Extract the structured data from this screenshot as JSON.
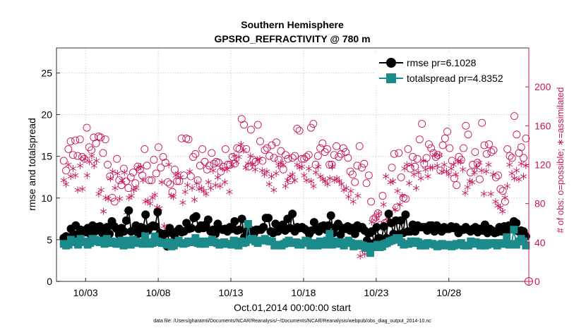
{
  "chart_data": {
    "type": "line",
    "title": "Southern Hemisphere",
    "subtitle": "GPSRO_REFRACTIVITY @ 780 m",
    "xlabel": "Oct.01,2014 00:00:00 start",
    "ylabel": "rmse and totalspread",
    "ylabel_right": "# of obs: o=possible; ∗=assimilated",
    "footer": "data file: /Users/gharamti/Documents/NCAR/Reanalysis/~/Documents/NCAR/Reanalysis/webpub/obs_diag_output_2014-10.nc",
    "xlim": [
      1,
      33.5
    ],
    "ylim": [
      0,
      28
    ],
    "ylim_right": [
      0,
      240
    ],
    "x_ticks": [
      3,
      8,
      13,
      18,
      23,
      28
    ],
    "x_tick_labels": [
      "10/03",
      "10/08",
      "10/13",
      "10/18",
      "10/23",
      "10/28"
    ],
    "y_ticks": [
      0,
      5,
      10,
      15,
      20,
      25
    ],
    "y_tick_labels": [
      "0",
      "5",
      "10",
      "15",
      "20",
      "25"
    ],
    "y_ticks_right": [
      0,
      40,
      80,
      120,
      160,
      200
    ],
    "y_tick_labels_right": [
      "0",
      "40",
      "80",
      "120",
      "160",
      "200"
    ],
    "legend": [
      "rmse pr=6.1028",
      "totalspread pr=4.8352"
    ],
    "legend_position": "top-right",
    "colors": {
      "rmse": "#000000",
      "spread": "#1b8a8a",
      "obs": "#c8145a"
    },
    "series": [
      {
        "name": "rmse",
        "marker": "circle",
        "color": "#000000",
        "values": [
          5.2,
          5.4,
          5.0,
          6.3,
          5.6,
          6.7,
          5.7,
          6.2,
          6.1,
          5.9,
          6.4,
          5.7,
          6.7,
          6.0,
          6.5,
          6.6,
          5.8,
          5.5,
          6.5,
          5.7,
          7.2,
          6.6,
          6.3,
          5.6,
          6.4,
          6.0,
          7.3,
          8.5,
          6.0,
          6.1,
          6.7,
          5.7,
          6.5,
          6.4,
          8.0,
          6.1,
          6.5,
          6.7,
          6.6,
          8.3,
          5.8,
          5.5,
          5.7,
          4.2,
          6.4,
          5.8,
          5.5,
          6.0,
          6.3,
          5.9,
          6.0,
          7.0,
          6.3,
          6.4,
          7.6,
          7.8,
          6.3,
          6.7,
          6.4,
          6.8,
          7.4,
          6.0,
          6.2,
          5.7,
          6.9,
          6.3,
          6.2,
          6.3,
          6.0,
          6.5,
          6.3,
          7.2,
          6.1,
          6.2,
          7.5,
          5.3,
          6.0,
          6.3,
          6.1,
          5.7,
          6.2,
          6.2,
          6.2,
          6.5,
          7.6,
          7.6,
          6.0,
          5.8,
          6.9,
          6.0,
          6.6,
          6.8,
          6.1,
          7.5,
          6.4,
          8.1,
          6.0,
          6.5,
          6.4,
          6.5,
          6.3,
          6.1,
          5.7,
          6.1,
          7.1,
          6.4,
          6.0,
          6.6,
          6.7,
          6.2,
          6.7,
          7.9,
          5.8,
          6.5,
          6.9,
          5.6,
          6.4,
          6.3,
          6.6,
          6.1,
          6.4,
          5.7,
          6.7,
          6.4,
          6.5,
          6.1,
          4.9,
          5.8,
          6.0,
          4.6,
          6.5,
          5.2,
          5.0,
          6.6,
          5.2,
          8.1,
          7.0,
          5.7,
          7.3,
          5.6,
          7.3,
          5.8,
          8.0,
          6.0,
          6.0,
          6.8,
          6.0,
          6.7,
          6.5,
          6.5,
          6.5,
          6.1,
          6.7,
          6.7,
          6.0,
          6.7,
          6.3,
          6.0,
          6.5,
          6.3,
          6.3,
          6.6,
          6.4,
          6.5,
          5.8,
          6.2,
          6.2,
          6.5,
          6.2,
          6.0,
          6.3,
          6.5,
          5.9,
          6.3,
          6.1,
          6.8,
          5.8,
          6.3,
          6.1,
          5.8,
          5.9,
          6.5,
          6.0,
          6.6,
          6.1,
          6.7,
          6.7,
          7.2,
          7.0,
          6.0,
          6.1,
          6.0,
          5.4
        ]
      },
      {
        "name": "totalspread",
        "marker": "square",
        "color": "#1b8a8a",
        "values": [
          4.5,
          4.3,
          4.4,
          5.0,
          4.8,
          4.7,
          4.4,
          5.1,
          4.7,
          4.8,
          4.4,
          4.6,
          5.1,
          5.0,
          4.8,
          4.7,
          4.9,
          4.5,
          5.1,
          4.6,
          4.8,
          4.7,
          4.5,
          4.5,
          4.9,
          4.3,
          4.7,
          4.9,
          4.4,
          5.0,
          4.6,
          4.6,
          4.7,
          4.5,
          5.4,
          4.7,
          4.5,
          4.6,
          5.4,
          4.8,
          4.7,
          4.6,
          4.6,
          4.4,
          4.7,
          4.2,
          4.3,
          4.6,
          4.9,
          4.6,
          4.5,
          4.6,
          4.8,
          4.7,
          4.7,
          5.2,
          4.6,
          4.5,
          4.8,
          4.5,
          4.7,
          4.8,
          5.0,
          4.7,
          4.6,
          4.4,
          4.5,
          4.7,
          4.5,
          4.5,
          4.4,
          4.9,
          4.7,
          4.3,
          4.8,
          4.6,
          4.7,
          6.9,
          5.0,
          5.1,
          4.8,
          4.6,
          4.9,
          4.9,
          5.1,
          4.9,
          4.8,
          4.8,
          4.3,
          4.4,
          4.4,
          4.3,
          4.5,
          4.7,
          4.9,
          4.6,
          4.6,
          4.7,
          4.4,
          4.4,
          4.6,
          4.9,
          4.8,
          4.3,
          4.4,
          4.6,
          4.3,
          4.8,
          4.6,
          4.4,
          4.9,
          5.7,
          4.4,
          4.8,
          4.6,
          4.5,
          4.7,
          4.3,
          4.6,
          4.9,
          4.6,
          4.2,
          4.3,
          4.5,
          4.4,
          4.3,
          4.0,
          4.2,
          3.4,
          4.2,
          4.1,
          4.4,
          4.1,
          4.2,
          4.5,
          4.6,
          4.8,
          4.9,
          5.0,
          5.2,
          5.2,
          4.7,
          4.4,
          4.5,
          4.5,
          4.8,
          4.6,
          4.8,
          4.7,
          4.3,
          4.5,
          4.3,
          4.6,
          4.5,
          4.5,
          4.4,
          4.2,
          4.3,
          4.5,
          4.3,
          4.4,
          4.4,
          4.2,
          4.3,
          4.5,
          4.4,
          4.6,
          4.3,
          4.3,
          4.3,
          4.8,
          4.5,
          4.7,
          4.6,
          4.3,
          4.6,
          4.3,
          4.4,
          4.6,
          4.5,
          4.6,
          4.3,
          4.6,
          4.5,
          4.5,
          5.3,
          4.4,
          4.5,
          6.2,
          4.4,
          4.8,
          5.1,
          4.8,
          4.3
        ]
      },
      {
        "name": "possible",
        "marker": "open-circle",
        "axis": "right",
        "color": "#c8145a",
        "values": [
          124,
          114,
          136,
          144,
          130,
          145,
          129,
          146,
          128,
          126,
          158,
          138,
          135,
          148,
          142,
          149,
          148,
          132,
          146,
          120,
          108,
          86,
          82,
          126,
          104,
          99,
          116,
          103,
          96,
          107,
          112,
          101,
          118,
          115,
          109,
          136,
          119,
          104,
          104,
          125,
          111,
          138,
          117,
          128,
          122,
          102,
          100,
          92,
          115,
          103,
          103,
          147,
          109,
          147,
          146,
          108,
          128,
          131,
          104,
          119,
          136,
          123,
          115,
          119,
          132,
          121,
          123,
          122,
          113,
          118,
          136,
          120,
          120,
          128,
          121,
          137,
          136,
          167,
          161,
          136,
          118,
          156,
          125,
          123,
          161,
          144,
          124,
          135,
          137,
          129,
          140,
          127,
          143,
          125,
          134,
          115,
          130,
          126,
          104,
          127,
          129,
          157,
          155,
          126,
          126,
          128,
          130,
          158,
          162,
          120,
          129,
          137,
          142,
          133,
          136,
          120,
          120,
          130,
          139,
          128,
          131,
          137,
          133,
          127,
          113,
          110,
          102,
          119,
          139,
          117,
          121,
          101,
          109,
          82,
          64,
          66,
          70,
          58,
          88,
          60,
          61,
          64,
          117,
          131,
          76,
          132,
          107,
          86,
          85,
          136,
          116,
          128,
          118,
          126,
          146,
          162,
          121,
          127,
          141,
          137,
          132,
          128,
          130,
          114,
          140,
          147,
          154,
          137,
          124,
          106,
          99,
          128,
          125,
          137,
          160,
          151,
          112,
          120,
          133,
          122,
          105,
          163,
          140,
          131,
          141,
          133,
          135,
          107,
          109,
          95,
          93,
          82,
          136,
          129,
          127,
          170,
          151,
          132,
          138,
          127,
          147
        ]
      },
      {
        "name": "assimilated",
        "marker": "asterisk",
        "axis": "right",
        "color": "#c8145a",
        "values": [
          104,
          100,
          120,
          108,
          116,
          109,
          94,
          119,
          95,
          126,
          109,
          123,
          129,
          119,
          124,
          90,
          94,
          72,
          86,
          85,
          106,
          113,
          96,
          111,
          85,
          104,
          112,
          71,
          86,
          88,
          94,
          96,
          117,
          118,
          104,
          82,
          83,
          80,
          86,
          89,
          76,
          75,
          102,
          57,
          54,
          120,
          88,
          87,
          109,
          111,
          107,
          81,
          92,
          99,
          113,
          96,
          84,
          101,
          95,
          96,
          93,
          90,
          102,
          96,
          114,
          99,
          107,
          98,
          116,
          102,
          115,
          92,
          120,
          129,
          123,
          128,
          141,
          135,
          117,
          121,
          129,
          120,
          115,
          125,
          126,
          114,
          110,
          113,
          100,
          108,
          94,
          111,
          119,
          122,
          120,
          98,
          104,
          108,
          110,
          104,
          120,
          117,
          118,
          109,
          104,
          116,
          103,
          98,
          112,
          118,
          108,
          105,
          103,
          100,
          106,
          118,
          104,
          106,
          103,
          100,
          94,
          96,
          87,
          93,
          82,
          52,
          88,
          26,
          32,
          28,
          46,
          48,
          61,
          52,
          65,
          70,
          55,
          79,
          108,
          60,
          102,
          103,
          74,
          93,
          79,
          88,
          116,
          120,
          101,
          120,
          110,
          96,
          112,
          106,
          124,
          115,
          108,
          117,
          117,
          130,
          119,
          130,
          113,
          120,
          113,
          110,
          116,
          120,
          110,
          123,
          123,
          115,
          91,
          97,
          103,
          102,
          112,
          117,
          122,
          114,
          90,
          113,
          120,
          90,
          110,
          82,
          78,
          76,
          72,
          86,
          98,
          120,
          111,
          106,
          114,
          105,
          121,
          108,
          119
        ]
      }
    ]
  }
}
